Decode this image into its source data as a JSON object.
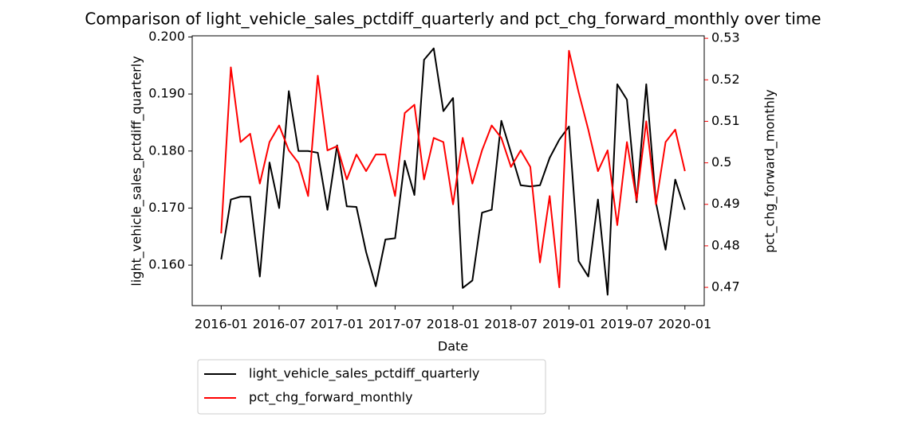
{
  "chart_data": {
    "type": "line",
    "title": "Comparison of light_vehicle_sales_pctdiff_quarterly and pct_chg_forward_monthly over time",
    "x_label": "Date",
    "y_label": "light_vehicle_sales_pctdiff_quarterly",
    "y2_label": "pct_chg_forward_monthly",
    "x": [
      "2016-01",
      "2016-02",
      "2016-03",
      "2016-04",
      "2016-05",
      "2016-06",
      "2016-07",
      "2016-08",
      "2016-09",
      "2016-10",
      "2016-11",
      "2016-12",
      "2017-01",
      "2017-02",
      "2017-03",
      "2017-04",
      "2017-05",
      "2017-06",
      "2017-07",
      "2017-08",
      "2017-09",
      "2017-10",
      "2017-11",
      "2017-12",
      "2018-01",
      "2018-02",
      "2018-03",
      "2018-04",
      "2018-05",
      "2018-06",
      "2018-07",
      "2018-08",
      "2018-09",
      "2018-10",
      "2018-11",
      "2018-12",
      "2019-01",
      "2019-02",
      "2019-03",
      "2019-04",
      "2019-05",
      "2019-06",
      "2019-07",
      "2019-08",
      "2019-09",
      "2019-10",
      "2019-11",
      "2019-12",
      "2020-01"
    ],
    "xlim": [
      "2015-10",
      "2020-03"
    ],
    "xticks": [
      "2016-01",
      "2016-07",
      "2017-01",
      "2017-07",
      "2018-01",
      "2018-07",
      "2019-01",
      "2019-07",
      "2020-01"
    ],
    "ylim": [
      0.1529,
      0.2002
    ],
    "yticks": [
      {
        "value": 0.16,
        "label": "0.160"
      },
      {
        "value": 0.17,
        "label": "0.170"
      },
      {
        "value": 0.18,
        "label": "0.180"
      },
      {
        "value": 0.19,
        "label": "0.190"
      },
      {
        "value": 0.2,
        "label": "0.200"
      }
    ],
    "y2lim": [
      0.4656,
      0.5306
    ],
    "y2ticks": [
      0.47,
      0.48,
      0.49,
      0.5,
      0.51,
      0.52,
      0.53
    ],
    "y2_color": "#ff0000",
    "legend": "below",
    "series": [
      {
        "name": "light_vehicle_sales_pctdiff_quarterly",
        "color": "#000000",
        "values": [
          0.161,
          0.1715,
          0.172,
          0.172,
          0.158,
          0.178,
          0.17,
          0.1905,
          0.18,
          0.18,
          0.1797,
          0.1697,
          0.181,
          0.1703,
          0.1702,
          0.1623,
          0.1563,
          0.1645,
          0.1647,
          0.1783,
          0.1723,
          0.196,
          0.198,
          0.187,
          0.1893,
          0.156,
          0.1573,
          0.1692,
          0.1697,
          0.1853,
          0.1797,
          0.174,
          0.1738,
          0.174,
          0.1788,
          0.182,
          0.1843,
          0.1607,
          0.158,
          0.1715,
          0.1548,
          0.1917,
          0.189,
          0.171,
          0.1917,
          0.171,
          0.1627,
          0.175,
          0.1697
        ]
      },
      {
        "name": "pct_chg_forward_monthly",
        "color": "#ff0000",
        "axis": "y2",
        "values": [
          0.483,
          0.523,
          0.505,
          0.507,
          0.495,
          0.505,
          0.509,
          0.503,
          0.5,
          0.492,
          0.521,
          0.503,
          0.504,
          0.496,
          0.502,
          0.498,
          0.502,
          0.502,
          0.492,
          0.512,
          0.514,
          0.496,
          0.506,
          0.505,
          0.49,
          0.506,
          0.495,
          0.503,
          0.509,
          0.506,
          0.499,
          0.503,
          0.499,
          0.476,
          0.492,
          0.47,
          0.527,
          0.517,
          0.508,
          0.498,
          0.503,
          0.485,
          0.505,
          0.491,
          0.51,
          0.49,
          0.505,
          0.508,
          0.498
        ]
      }
    ]
  }
}
